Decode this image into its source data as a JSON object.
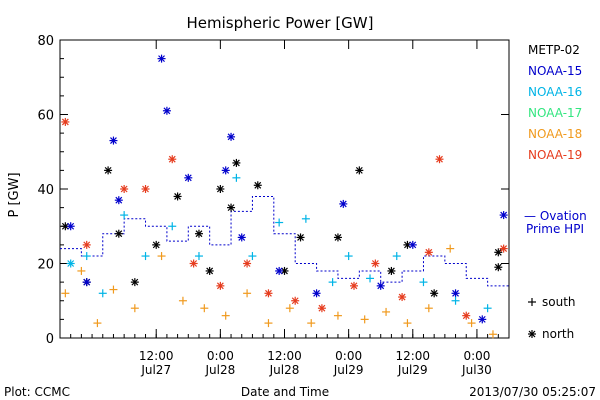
{
  "chart_data": {
    "type": "scatter",
    "title": "Hemispheric Power [GW]",
    "xlabel": "Date and Time",
    "ylabel": "P [GW]",
    "ylim": [
      0,
      80
    ],
    "yticks": [
      0,
      20,
      40,
      60,
      80
    ],
    "xrange": [
      "2013-07-26 18:00",
      "2013-07-30 06:00"
    ],
    "xticks": [
      {
        "t": "2013-07-27 12:00",
        "time": "12:00",
        "day": "Jul27"
      },
      {
        "t": "2013-07-28 00:00",
        "time": "0:00",
        "day": "Jul28"
      },
      {
        "t": "2013-07-28 12:00",
        "time": "12:00",
        "day": "Jul28"
      },
      {
        "t": "2013-07-29 00:00",
        "time": "0:00",
        "day": "Jul29"
      },
      {
        "t": "2013-07-29 12:00",
        "time": "12:00",
        "day": "Jul29"
      },
      {
        "t": "2013-07-30 00:00",
        "time": "0:00",
        "day": "Jul30"
      }
    ],
    "legend": {
      "placement": "right",
      "markers": [
        {
          "symbol": "+",
          "label": "south"
        },
        {
          "symbol": "*",
          "label": "north"
        }
      ]
    },
    "series": [
      {
        "name": "METP-02",
        "color": "#000000",
        "points": [
          [
            "2013-07-26 19:00",
            30,
            "n"
          ],
          [
            "2013-07-26 23:00",
            15,
            "n"
          ],
          [
            "2013-07-27 03:00",
            45,
            "n"
          ],
          [
            "2013-07-27 05:00",
            28,
            "n"
          ],
          [
            "2013-07-27 08:00",
            15,
            "n"
          ],
          [
            "2013-07-27 12:00",
            25,
            "n"
          ],
          [
            "2013-07-27 16:00",
            38,
            "n"
          ],
          [
            "2013-07-27 20:00",
            28,
            "n"
          ],
          [
            "2013-07-27 22:00",
            18,
            "n"
          ],
          [
            "2013-07-28 00:00",
            40,
            "n"
          ],
          [
            "2013-07-28 02:00",
            35,
            "n"
          ],
          [
            "2013-07-28 03:00",
            47,
            "n"
          ],
          [
            "2013-07-28 07:00",
            41,
            "n"
          ],
          [
            "2013-07-28 12:00",
            18,
            "n"
          ],
          [
            "2013-07-28 15:00",
            27,
            "n"
          ],
          [
            "2013-07-28 22:00",
            27,
            "n"
          ],
          [
            "2013-07-29 02:00",
            45,
            "n"
          ],
          [
            "2013-07-29 08:00",
            18,
            "n"
          ],
          [
            "2013-07-29 11:00",
            25,
            "n"
          ],
          [
            "2013-07-29 16:00",
            12,
            "n"
          ],
          [
            "2013-07-30 04:00",
            19,
            "n"
          ],
          [
            "2013-07-30 04:00",
            23,
            "n"
          ]
        ]
      },
      {
        "name": "NOAA-15",
        "color": "#0000cc",
        "points": [
          [
            "2013-07-26 20:00",
            30,
            "n"
          ],
          [
            "2013-07-26 23:00",
            15,
            "n"
          ],
          [
            "2013-07-27 04:00",
            53,
            "n"
          ],
          [
            "2013-07-27 05:00",
            37,
            "n"
          ],
          [
            "2013-07-27 13:00",
            75,
            "n"
          ],
          [
            "2013-07-27 14:00",
            61,
            "n"
          ],
          [
            "2013-07-27 18:00",
            43,
            "n"
          ],
          [
            "2013-07-28 02:00",
            54,
            "n"
          ],
          [
            "2013-07-28 01:00",
            45,
            "n"
          ],
          [
            "2013-07-28 04:00",
            27,
            "n"
          ],
          [
            "2013-07-28 11:00",
            18,
            "n"
          ],
          [
            "2013-07-28 18:00",
            12,
            "n"
          ],
          [
            "2013-07-28 23:00",
            36,
            "n"
          ],
          [
            "2013-07-29 06:00",
            14,
            "n"
          ],
          [
            "2013-07-29 12:00",
            25,
            "n"
          ],
          [
            "2013-07-29 20:00",
            12,
            "n"
          ],
          [
            "2013-07-30 01:00",
            5,
            "n"
          ],
          [
            "2013-07-30 05:00",
            33,
            "n"
          ]
        ]
      },
      {
        "name": "NOAA-16",
        "color": "#00b4e6",
        "points": [
          [
            "2013-07-26 20:00",
            20,
            "n"
          ],
          [
            "2013-07-26 23:00",
            22,
            "p"
          ],
          [
            "2013-07-27 02:00",
            12,
            "p"
          ],
          [
            "2013-07-27 06:00",
            33,
            "p"
          ],
          [
            "2013-07-27 10:00",
            22,
            "p"
          ],
          [
            "2013-07-27 15:00",
            30,
            "p"
          ],
          [
            "2013-07-27 20:00",
            22,
            "p"
          ],
          [
            "2013-07-28 03:00",
            43,
            "p"
          ],
          [
            "2013-07-28 06:00",
            22,
            "p"
          ],
          [
            "2013-07-28 11:00",
            31,
            "p"
          ],
          [
            "2013-07-28 16:00",
            32,
            "p"
          ],
          [
            "2013-07-28 21:00",
            15,
            "p"
          ],
          [
            "2013-07-29 00:00",
            22,
            "p"
          ],
          [
            "2013-07-29 04:00",
            16,
            "p"
          ],
          [
            "2013-07-29 09:00",
            22,
            "p"
          ],
          [
            "2013-07-29 14:00",
            15,
            "p"
          ],
          [
            "2013-07-29 20:00",
            10,
            "p"
          ],
          [
            "2013-07-30 02:00",
            8,
            "p"
          ]
        ]
      },
      {
        "name": "NOAA-17",
        "color": "#33e680",
        "points": []
      },
      {
        "name": "NOAA-18",
        "color": "#f09a1e",
        "points": [
          [
            "2013-07-26 19:00",
            12,
            "p"
          ],
          [
            "2013-07-26 22:00",
            18,
            "p"
          ],
          [
            "2013-07-27 01:00",
            4,
            "p"
          ],
          [
            "2013-07-27 04:00",
            13,
            "p"
          ],
          [
            "2013-07-27 08:00",
            8,
            "p"
          ],
          [
            "2013-07-27 13:00",
            22,
            "p"
          ],
          [
            "2013-07-27 17:00",
            10,
            "p"
          ],
          [
            "2013-07-27 21:00",
            8,
            "p"
          ],
          [
            "2013-07-28 01:00",
            6,
            "p"
          ],
          [
            "2013-07-28 05:00",
            12,
            "p"
          ],
          [
            "2013-07-28 09:00",
            4,
            "p"
          ],
          [
            "2013-07-28 13:00",
            8,
            "p"
          ],
          [
            "2013-07-28 17:00",
            4,
            "p"
          ],
          [
            "2013-07-28 22:00",
            6,
            "p"
          ],
          [
            "2013-07-29 03:00",
            5,
            "p"
          ],
          [
            "2013-07-29 07:00",
            7,
            "p"
          ],
          [
            "2013-07-29 11:00",
            4,
            "p"
          ],
          [
            "2013-07-29 15:00",
            8,
            "p"
          ],
          [
            "2013-07-29 19:00",
            24,
            "p"
          ],
          [
            "2013-07-29 23:00",
            4,
            "p"
          ],
          [
            "2013-07-30 03:00",
            1,
            "p"
          ]
        ]
      },
      {
        "name": "NOAA-19",
        "color": "#e63c1e",
        "points": [
          [
            "2013-07-26 19:00",
            58,
            "n"
          ],
          [
            "2013-07-26 23:00",
            25,
            "n"
          ],
          [
            "2013-07-27 06:00",
            40,
            "n"
          ],
          [
            "2013-07-27 10:00",
            40,
            "n"
          ],
          [
            "2013-07-27 15:00",
            48,
            "n"
          ],
          [
            "2013-07-27 19:00",
            20,
            "n"
          ],
          [
            "2013-07-28 00:00",
            14,
            "n"
          ],
          [
            "2013-07-28 05:00",
            20,
            "n"
          ],
          [
            "2013-07-28 09:00",
            12,
            "n"
          ],
          [
            "2013-07-28 14:00",
            10,
            "n"
          ],
          [
            "2013-07-28 19:00",
            8,
            "n"
          ],
          [
            "2013-07-29 01:00",
            14,
            "n"
          ],
          [
            "2013-07-29 05:00",
            20,
            "n"
          ],
          [
            "2013-07-29 10:00",
            11,
            "n"
          ],
          [
            "2013-07-29 15:00",
            23,
            "n"
          ],
          [
            "2013-07-29 17:00",
            48,
            "n"
          ],
          [
            "2013-07-29 22:00",
            6,
            "n"
          ],
          [
            "2013-07-30 05:00",
            24,
            "n"
          ]
        ]
      }
    ],
    "ovation": {
      "label_line1": "— Ovation",
      "label_line2": "Prime HPI",
      "color": "#0000cc",
      "points": [
        [
          "2013-07-26 18:00",
          24
        ],
        [
          "2013-07-26 22:00",
          22
        ],
        [
          "2013-07-27 02:00",
          28
        ],
        [
          "2013-07-27 06:00",
          32
        ],
        [
          "2013-07-27 10:00",
          30
        ],
        [
          "2013-07-27 14:00",
          26
        ],
        [
          "2013-07-27 18:00",
          30
        ],
        [
          "2013-07-27 22:00",
          25
        ],
        [
          "2013-07-28 02:00",
          34
        ],
        [
          "2013-07-28 06:00",
          38
        ],
        [
          "2013-07-28 10:00",
          28
        ],
        [
          "2013-07-28 14:00",
          20
        ],
        [
          "2013-07-28 18:00",
          18
        ],
        [
          "2013-07-28 22:00",
          16
        ],
        [
          "2013-07-29 02:00",
          18
        ],
        [
          "2013-07-29 06:00",
          15
        ],
        [
          "2013-07-29 10:00",
          18
        ],
        [
          "2013-07-29 14:00",
          22
        ],
        [
          "2013-07-29 18:00",
          20
        ],
        [
          "2013-07-29 22:00",
          16
        ],
        [
          "2013-07-30 02:00",
          14
        ],
        [
          "2013-07-30 06:00",
          14
        ]
      ]
    }
  },
  "footer": {
    "plot_by": "Plot: CCMC",
    "timestamp": "2013/07/30 05:25:07"
  }
}
